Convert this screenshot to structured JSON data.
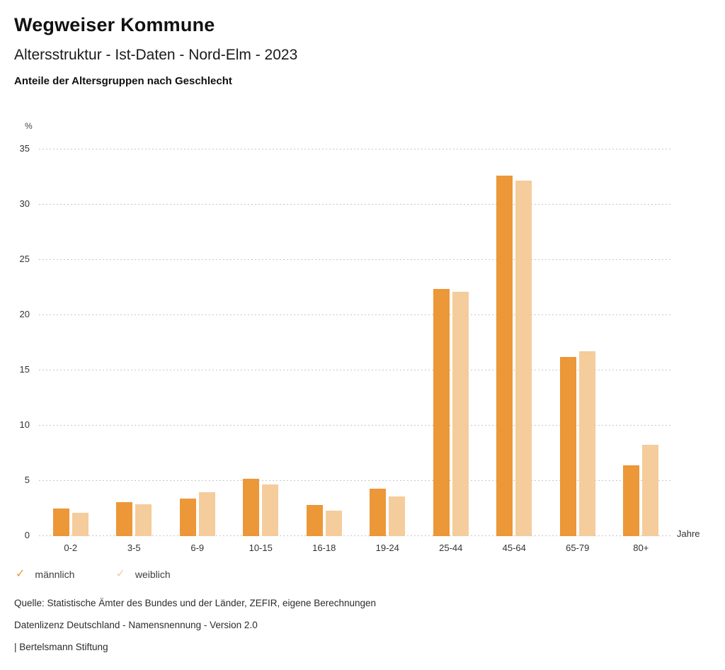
{
  "header": {
    "title": "Wegweiser Kommune",
    "subtitle": "Altersstruktur - Ist-Daten - Nord-Elm - 2023",
    "chart_heading": "Anteile der Altersgruppen nach Geschlecht"
  },
  "chart_data": {
    "type": "bar",
    "categories": [
      "0-2",
      "3-5",
      "6-9",
      "10-15",
      "16-18",
      "19-24",
      "25-44",
      "45-64",
      "65-79",
      "80+"
    ],
    "series": [
      {
        "name": "männlich",
        "color": "#ec9738",
        "values": [
          2.5,
          3.1,
          3.4,
          5.2,
          2.8,
          4.3,
          22.4,
          32.6,
          16.2,
          6.4
        ]
      },
      {
        "name": "weiblich",
        "color": "#f5cc9c",
        "values": [
          2.1,
          2.9,
          4.0,
          4.7,
          2.3,
          3.6,
          22.1,
          32.2,
          16.7,
          8.3
        ]
      }
    ],
    "title": "Anteile der Altersgruppen nach Geschlecht",
    "xlabel": "Jahre",
    "ylabel": "%",
    "y_ticks": [
      0,
      5,
      10,
      15,
      20,
      25,
      30,
      35
    ],
    "ylim": [
      0,
      35
    ],
    "grid": true,
    "gridline_style": "dotted",
    "legend_position": "bottom-left"
  },
  "legend": {
    "check_icon": "✓"
  },
  "footer": {
    "source": "Quelle: Statistische Ämter des Bundes und der Länder, ZEFIR, eigene Berechnungen",
    "license": "Datenlizenz Deutschland - Namensnennung - Version 2.0",
    "attribution": "| Bertelsmann Stiftung"
  }
}
